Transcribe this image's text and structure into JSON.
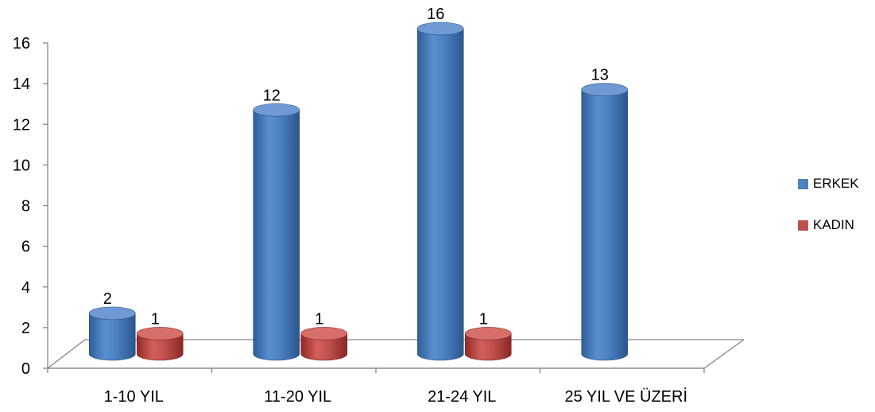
{
  "chart_data": {
    "type": "bar",
    "categories": [
      "1-10 YIL",
      "11-20 YIL",
      "21-24 YIL",
      "25 YIL VE ÜZERİ"
    ],
    "series": [
      {
        "name": "ERKEK",
        "values": [
          2,
          12,
          16,
          13
        ],
        "labels": [
          "2",
          "12",
          "16",
          "13"
        ],
        "color": "#4F81BD"
      },
      {
        "name": "KADIN",
        "values": [
          1,
          1,
          1,
          null
        ],
        "labels": [
          "1",
          "1",
          "1",
          ""
        ],
        "color": "#C0504D"
      }
    ],
    "ylim": [
      0,
      16
    ],
    "yticks": [
      "0",
      "2",
      "4",
      "6",
      "8",
      "10",
      "12",
      "14",
      "16"
    ],
    "grid": false,
    "legend_position": "right"
  }
}
